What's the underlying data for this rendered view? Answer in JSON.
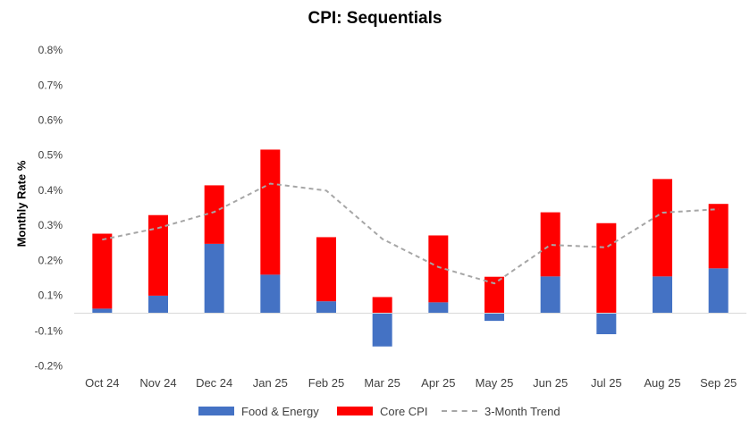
{
  "chart_data": {
    "type": "bar",
    "stacked": true,
    "title": "CPI: Sequentials",
    "xlabel": "",
    "ylabel": "Monthly Rate %",
    "categories": [
      "Oct 24",
      "Nov 24",
      "Dec 24",
      "Jan 25",
      "Feb 25",
      "Mar 25",
      "Apr 25",
      "May 25",
      "Jun 25",
      "Jul 25",
      "Aug 25",
      "Sep 25"
    ],
    "series": [
      {
        "name": "Food & Energy",
        "kind": "bar",
        "color": "#4472c4",
        "values": [
          0.013,
          0.05,
          0.198,
          0.11,
          0.034,
          -0.095,
          0.031,
          -0.022,
          0.105,
          -0.06,
          0.105,
          0.128
        ]
      },
      {
        "name": "Core CPI",
        "kind": "bar",
        "color": "#ff0000",
        "values": [
          0.214,
          0.23,
          0.167,
          0.357,
          0.183,
          0.046,
          0.191,
          0.104,
          0.183,
          0.257,
          0.278,
          0.184
        ]
      },
      {
        "name": "3-Month Trend",
        "kind": "line",
        "style": "dashed",
        "color": "#a6a6a6",
        "values": [
          0.21,
          0.243,
          0.289,
          0.37,
          0.35,
          0.212,
          0.132,
          0.085,
          0.195,
          0.188,
          0.287,
          0.297
        ]
      }
    ],
    "y_ticks": [
      -0.002,
      -0.001,
      0.001,
      0.002,
      0.003,
      0.004,
      0.005,
      0.006,
      0.007,
      0.008
    ],
    "y_tick_labels": [
      "-0.2%",
      "-0.1%",
      "0.1%",
      "0.2%",
      "0.3%",
      "0.4%",
      "0.5%",
      "0.6%",
      "0.7%",
      "0.8%"
    ],
    "ylim": [
      -0.2,
      0.8
    ],
    "grid": false,
    "legend_position": "bottom"
  }
}
